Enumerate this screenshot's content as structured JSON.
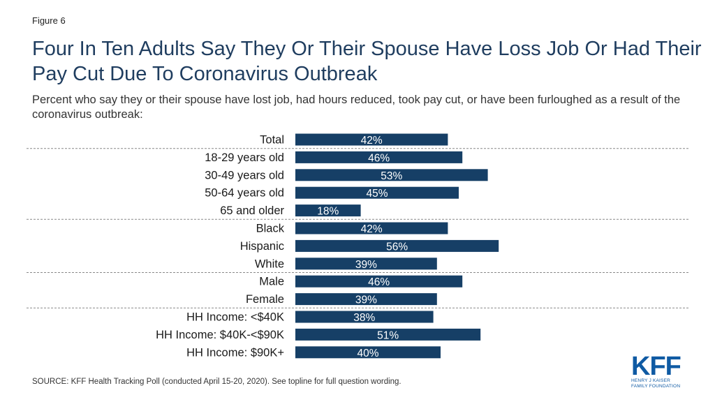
{
  "figure_label": "Figure 6",
  "title": "Four In Ten Adults Say They Or Their Spouse Have Loss Job Or Had Their Pay Cut Due To Coronavirus Outbreak",
  "subtitle": "Percent who say they or their spouse have lost job, had hours reduced, took pay cut, or have been furloughed as a result of the coronavirus outbreak:",
  "source": "SOURCE: KFF Health Tracking Poll (conducted April 15-20, 2020). See topline for full question wording.",
  "logo": {
    "letters": "KFF",
    "line1": "Henry J Kaiser",
    "line2": "Family Foundation"
  },
  "colors": {
    "bar": "#163f66",
    "bar_label": "#ffffff",
    "divider": "#888888"
  },
  "chart_data": {
    "type": "bar",
    "orientation": "horizontal",
    "categories": [
      "Total",
      "18-29 years old",
      "30-49 years old",
      "50-64 years old",
      "65 and older",
      "Black",
      "Hispanic",
      "White",
      "Male",
      "Female",
      "HH Income: <$40K",
      "HH Income: $40K-<$90K",
      "HH Income: $90K+"
    ],
    "values": [
      42,
      46,
      53,
      45,
      18,
      42,
      56,
      39,
      46,
      39,
      38,
      51,
      40
    ],
    "data_labels": [
      "42%",
      "46%",
      "53%",
      "45%",
      "18%",
      "42%",
      "56%",
      "39%",
      "46%",
      "39%",
      "38%",
      "51%",
      "40%"
    ],
    "group_breaks_after": [
      "Total",
      "65 and older",
      "White",
      "Female"
    ],
    "unit": "%",
    "xlim": [
      0,
      100
    ],
    "grid": false,
    "legend": "none"
  }
}
